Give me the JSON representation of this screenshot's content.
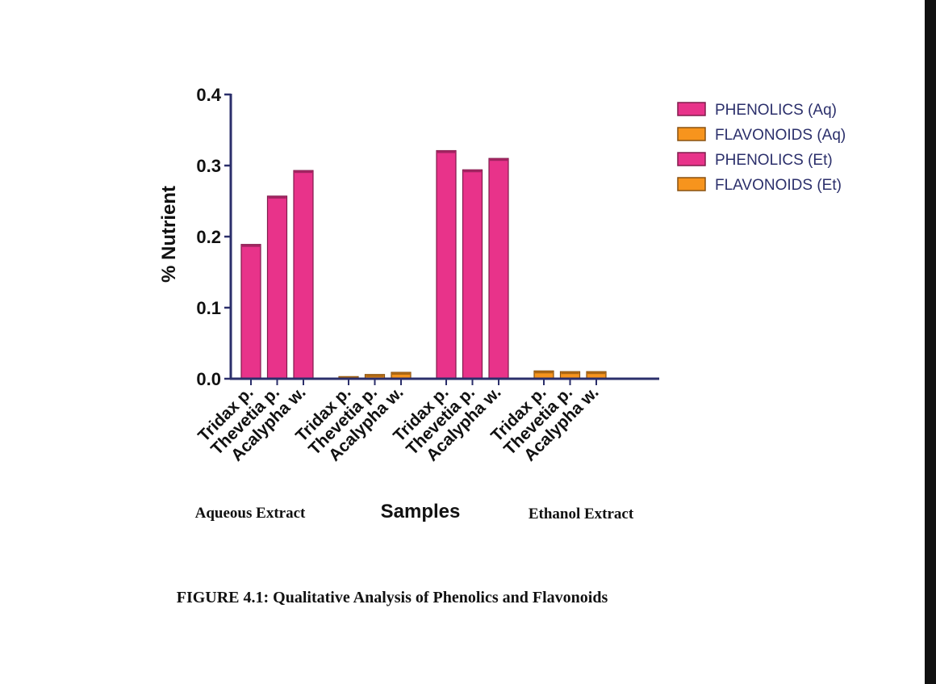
{
  "chart_data": {
    "type": "bar",
    "ylabel": "% Nutrient",
    "xlabel": "Samples",
    "ylim": [
      0,
      0.4
    ],
    "yticks": [
      "0.0",
      "0.1",
      "0.2",
      "0.3",
      "0.4"
    ],
    "group_labels": [
      "Aqueous Extract",
      "Ethanol Extract"
    ],
    "series": [
      {
        "name": "PHENOLICS (Aq)",
        "color": "#e8338a",
        "categories": [
          "Tridax p.",
          "Thevetia p.",
          "Acalypha w."
        ],
        "values": [
          0.189,
          0.257,
          0.293
        ]
      },
      {
        "name": "FLAVONOIDS (Aq)",
        "color": "#f7941d",
        "categories": [
          "Tridax p.",
          "Thevetia p.",
          "Acalypha w."
        ],
        "values": [
          0.003,
          0.006,
          0.009
        ]
      },
      {
        "name": "PHENOLICS (Et)",
        "color": "#e8338a",
        "categories": [
          "Tridax p.",
          "Thevetia p.",
          "Acalypha w."
        ],
        "values": [
          0.321,
          0.294,
          0.31
        ]
      },
      {
        "name": "FLAVONOIDS (Et)",
        "color": "#f7941d",
        "categories": [
          "Tridax p.",
          "Thevetia p.",
          "Acalypha w."
        ],
        "values": [
          0.011,
          0.01,
          0.01
        ]
      }
    ]
  },
  "caption": "FIGURE 4.1: Qualitative Analysis of Phenolics and Flavonoids",
  "colors": {
    "axis": "#2b2f6b",
    "phenolic": "#e8338a",
    "flavonoid": "#f7941d"
  }
}
